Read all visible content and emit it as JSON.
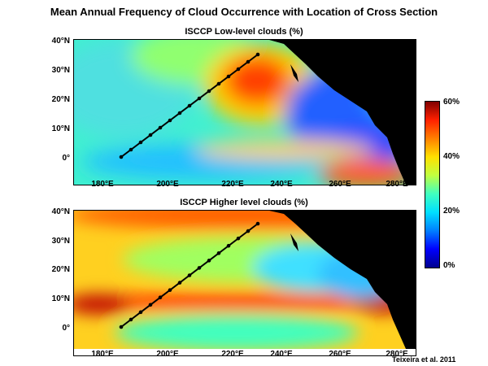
{
  "title": "Mean Annual Frequency of Cloud Occurrence with Location of Cross Section",
  "panels": [
    {
      "title": "ISCCP Low-level clouds (%)"
    },
    {
      "title": "ISCCP Higher level clouds (%)"
    }
  ],
  "axes": {
    "lat_labels": [
      "40°N",
      "30°N",
      "20°N",
      "10°N",
      "0°"
    ],
    "lon_labels": [
      "180°E",
      "200°E",
      "220°E",
      "240°E",
      "260°E",
      "280°E"
    ]
  },
  "colorbar": {
    "labels": [
      "60%",
      "40%",
      "20%",
      "0%"
    ],
    "min": 0,
    "max": 60,
    "colors": [
      "#00008f",
      "#0000ff",
      "#0080ff",
      "#00e0ff",
      "#40ffc0",
      "#c0ff40",
      "#ffe000",
      "#ff8000",
      "#ff2000",
      "#800000"
    ]
  },
  "cross_section": {
    "start": {
      "lon": 186,
      "lat": 0.5
    },
    "end": {
      "lon": 232,
      "lat": 36
    }
  },
  "credit": "Teixeira et al. 2011"
}
